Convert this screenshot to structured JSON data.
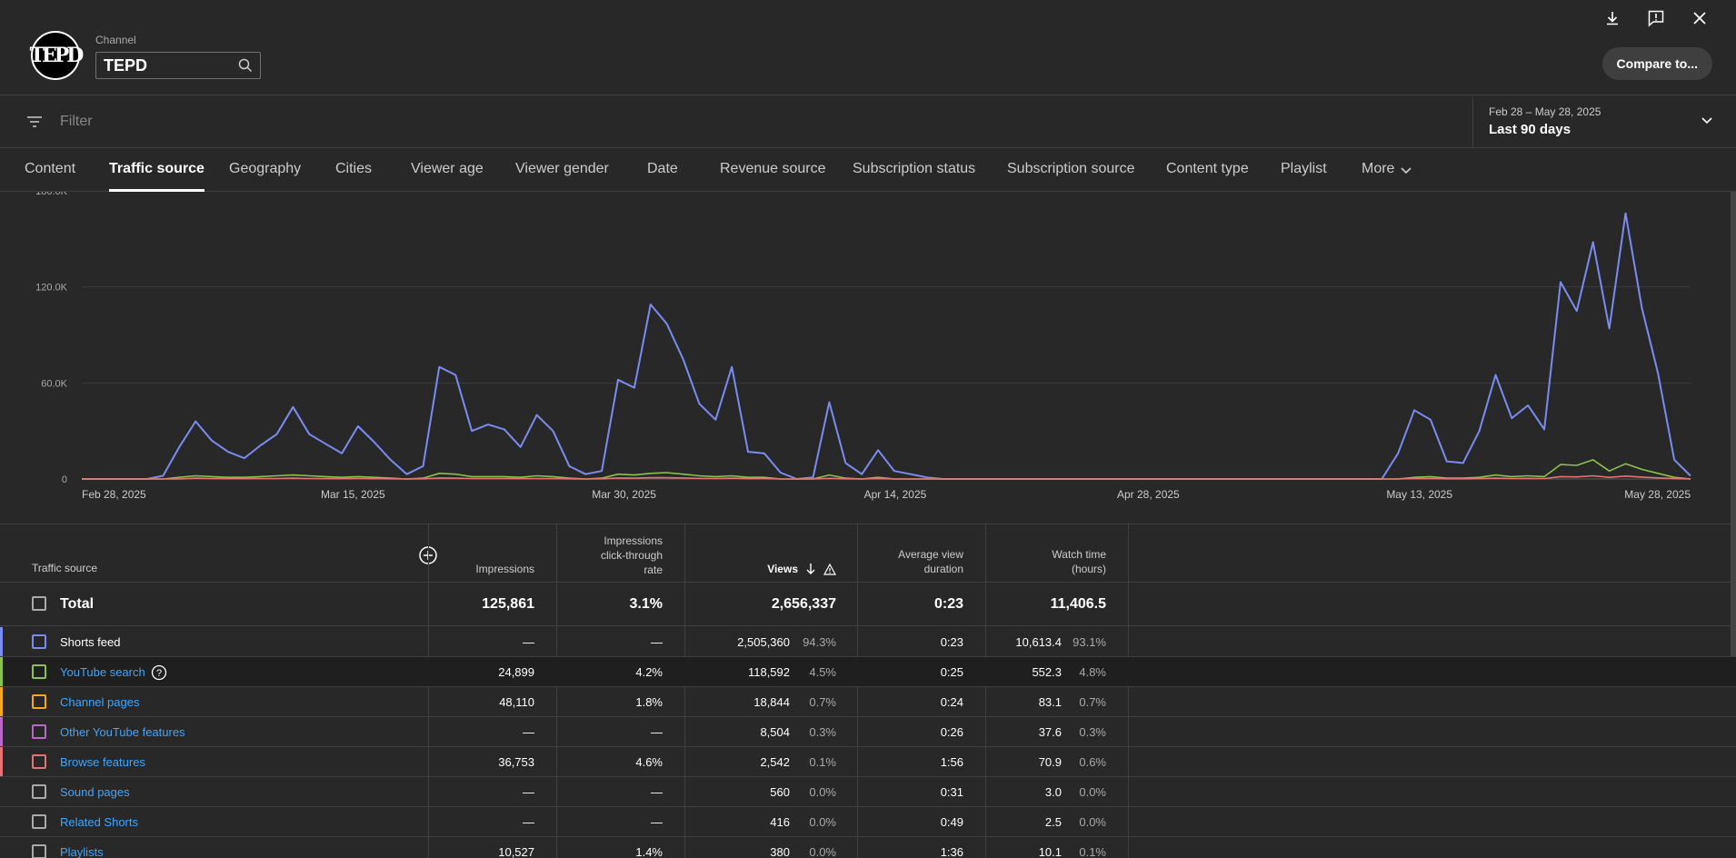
{
  "header": {
    "channel_label": "Channel",
    "channel_value": "TEPD",
    "logo_text": "TEPD",
    "compare_label": "Compare to..."
  },
  "filter": {
    "placeholder": "Filter"
  },
  "date_range": {
    "sub": "Feb 28 – May 28, 2025",
    "main": "Last 90 days"
  },
  "tabs": [
    {
      "label": "Content"
    },
    {
      "label": "Traffic source",
      "active": true
    },
    {
      "label": "Geography"
    },
    {
      "label": "Cities"
    },
    {
      "label": "Viewer age"
    },
    {
      "label": "Viewer gender"
    },
    {
      "label": "Date"
    },
    {
      "label": "Revenue source"
    },
    {
      "label": "Subscription status"
    },
    {
      "label": "Subscription source"
    },
    {
      "label": "Content type"
    },
    {
      "label": "Playlist"
    },
    {
      "label": "More"
    }
  ],
  "chart_data": {
    "type": "line",
    "y_ticks": [
      "0",
      "60.0K",
      "120.0K",
      "180.0K"
    ],
    "ylim": [
      0,
      180000
    ],
    "x_ticks": [
      "Feb 28, 2025",
      "Mar 15, 2025",
      "Mar 30, 2025",
      "Apr 14, 2025",
      "Apr 28, 2025",
      "May 13, 2025",
      "May 28, 2025"
    ],
    "x_start": "2025-02-28",
    "x_end": "2025-05-28",
    "grid": true,
    "series": [
      {
        "color": "#7b8cf0",
        "values": [
          0,
          0,
          0,
          0,
          0,
          2000,
          20000,
          36000,
          24000,
          17000,
          13000,
          21000,
          28000,
          45000,
          28000,
          22000,
          16000,
          33000,
          23000,
          12000,
          3000,
          8000,
          70000,
          65000,
          30000,
          34000,
          31000,
          20000,
          40000,
          30000,
          8000,
          3000,
          5000,
          62000,
          57000,
          109000,
          97000,
          75000,
          47000,
          37000,
          70000,
          17000,
          16000,
          4000,
          0,
          1000,
          48000,
          10000,
          3000,
          18000,
          5000,
          3000,
          1000,
          0,
          0,
          0,
          0,
          0,
          0,
          0,
          0,
          0,
          0,
          0,
          0,
          0,
          0,
          0,
          0,
          0,
          0,
          0,
          0,
          0,
          0,
          0,
          0,
          0,
          0,
          0,
          0,
          16000,
          43000,
          37000,
          11000,
          10000,
          30000,
          65000,
          38000,
          46000,
          31000,
          123000,
          105000,
          148000,
          94000,
          166000,
          107000,
          66000,
          12000,
          2000
        ]
      },
      {
        "color": "#8bc34a",
        "values": [
          0,
          0,
          0,
          0,
          0,
          0,
          1000,
          2000,
          1500,
          1000,
          1000,
          1500,
          2000,
          2500,
          2000,
          1500,
          1000,
          1500,
          1000,
          500,
          0,
          500,
          3500,
          3000,
          1500,
          1500,
          1500,
          1000,
          2000,
          1500,
          500,
          0,
          500,
          3000,
          2500,
          3500,
          4000,
          3000,
          2000,
          1500,
          2000,
          1000,
          1000,
          0,
          0,
          0,
          2500,
          500,
          0,
          1000,
          0,
          0,
          0,
          0,
          0,
          0,
          0,
          0,
          0,
          0,
          0,
          0,
          0,
          0,
          0,
          0,
          0,
          0,
          0,
          0,
          0,
          0,
          0,
          0,
          0,
          0,
          0,
          0,
          0,
          0,
          0,
          0,
          1000,
          1500,
          500,
          500,
          1000,
          2500,
          1500,
          2000,
          1500,
          9000,
          8500,
          12000,
          5000,
          9500,
          6000,
          3500,
          1000,
          0
        ]
      },
      {
        "color": "#e57373",
        "values": [
          0,
          0,
          0,
          0,
          0,
          0,
          0,
          500,
          300,
          200,
          200,
          300,
          300,
          500,
          300,
          200,
          200,
          300,
          200,
          100,
          0,
          100,
          600,
          500,
          300,
          300,
          300,
          200,
          300,
          200,
          100,
          0,
          100,
          600,
          500,
          800,
          800,
          600,
          400,
          300,
          500,
          200,
          200,
          0,
          0,
          0,
          400,
          100,
          0,
          200,
          0,
          0,
          0,
          0,
          0,
          0,
          0,
          0,
          0,
          0,
          0,
          0,
          0,
          0,
          0,
          0,
          0,
          0,
          0,
          0,
          0,
          0,
          0,
          0,
          0,
          0,
          0,
          0,
          0,
          0,
          0,
          0,
          200,
          300,
          100,
          100,
          200,
          500,
          300,
          400,
          300,
          1500,
          1300,
          2000,
          1000,
          1800,
          1200,
          700,
          200,
          0
        ]
      }
    ]
  },
  "table": {
    "headers": {
      "source": "Traffic source",
      "impressions": "Impressions",
      "ctr_1": "Impressions",
      "ctr_2": "click-through",
      "ctr_3": "rate",
      "views": "Views",
      "avd_1": "Average view",
      "avd_2": "duration",
      "wt_1": "Watch time",
      "wt_2": "(hours)"
    },
    "total": {
      "label": "Total",
      "impressions": "125,861",
      "ctr": "3.1%",
      "views": "2,656,337",
      "avd": "0:23",
      "watch": "11,406.5"
    },
    "rows": [
      {
        "name": "Shorts feed",
        "color": "#7b8cf0",
        "link": false,
        "impressions": "—",
        "ctr": "—",
        "views": "2,505,360",
        "views_pct": "94.3%",
        "avd": "0:23",
        "watch": "10,613.4",
        "watch_pct": "93.1%"
      },
      {
        "name": "YouTube search",
        "color": "#8bc34a",
        "link": true,
        "help": true,
        "impressions": "24,899",
        "ctr": "4.2%",
        "views": "118,592",
        "views_pct": "4.5%",
        "avd": "0:25",
        "watch": "552.3",
        "watch_pct": "4.8%"
      },
      {
        "name": "Channel pages",
        "color": "#f5a623",
        "link": true,
        "impressions": "48,110",
        "ctr": "1.8%",
        "views": "18,844",
        "views_pct": "0.7%",
        "avd": "0:24",
        "watch": "83.1",
        "watch_pct": "0.7%"
      },
      {
        "name": "Other YouTube features",
        "color": "#ba68c8",
        "link": true,
        "impressions": "—",
        "ctr": "—",
        "views": "8,504",
        "views_pct": "0.3%",
        "avd": "0:26",
        "watch": "37.6",
        "watch_pct": "0.3%"
      },
      {
        "name": "Browse features",
        "color": "#e57373",
        "link": true,
        "impressions": "36,753",
        "ctr": "4.6%",
        "views": "2,542",
        "views_pct": "0.1%",
        "avd": "1:56",
        "watch": "70.9",
        "watch_pct": "0.6%"
      },
      {
        "name": "Sound pages",
        "color": "",
        "link": true,
        "impressions": "—",
        "ctr": "—",
        "views": "560",
        "views_pct": "0.0%",
        "avd": "0:31",
        "watch": "3.0",
        "watch_pct": "0.0%"
      },
      {
        "name": "Related Shorts",
        "color": "",
        "link": true,
        "impressions": "—",
        "ctr": "—",
        "views": "416",
        "views_pct": "0.0%",
        "avd": "0:49",
        "watch": "2.5",
        "watch_pct": "0.0%"
      },
      {
        "name": "Playlists",
        "color": "",
        "link": true,
        "impressions": "10,527",
        "ctr": "1.4%",
        "views": "380",
        "views_pct": "0.0%",
        "avd": "1:36",
        "watch": "10.1",
        "watch_pct": "0.1%"
      }
    ]
  }
}
